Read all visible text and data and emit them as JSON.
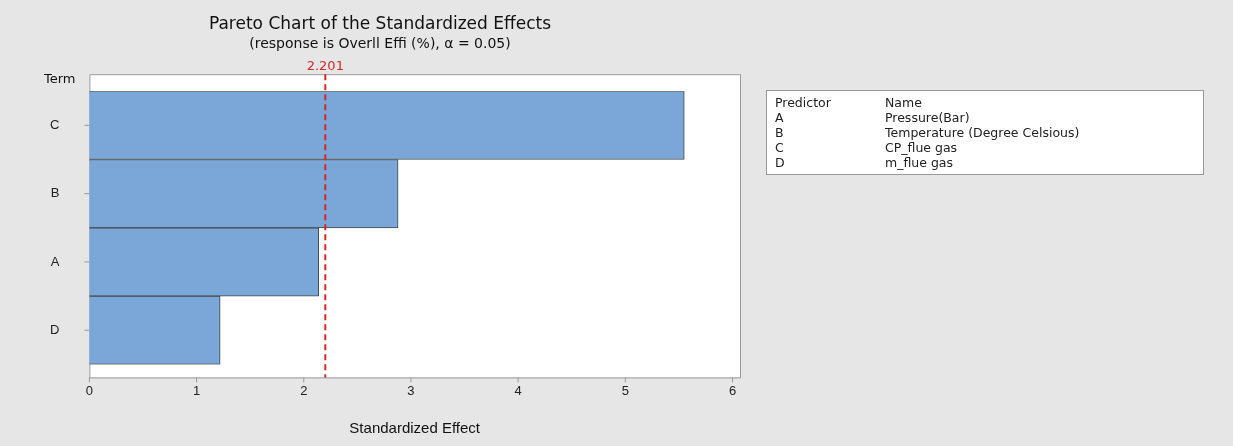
{
  "chart_data": {
    "type": "bar",
    "orientation": "horizontal",
    "title": "Pareto Chart of the Standardized Effects",
    "subtitle": "(response is Overll Effi (%), α = 0.05)",
    "xlabel": "Standardized Effect",
    "ylabel": "Term",
    "categories": [
      "C",
      "B",
      "A",
      "D"
    ],
    "values": [
      5.55,
      2.88,
      2.14,
      1.22
    ],
    "color": "#7ba7d8",
    "xlim": [
      0,
      6.07
    ],
    "xticks": [
      0,
      1,
      2,
      3,
      4,
      5,
      6
    ],
    "grid": false,
    "legend": false,
    "ref_lines": [
      {
        "axis": "x",
        "value": 2.201,
        "label": "2.201",
        "color": "#d62728",
        "line_style": "dashed"
      }
    ],
    "annotations": [
      "Predictor",
      "Name",
      "A",
      "Pressure(Bar)",
      "B",
      "Temperature (Degree Celsious)",
      "C",
      "CP_flue gas",
      "D",
      "m_flue gas"
    ]
  }
}
